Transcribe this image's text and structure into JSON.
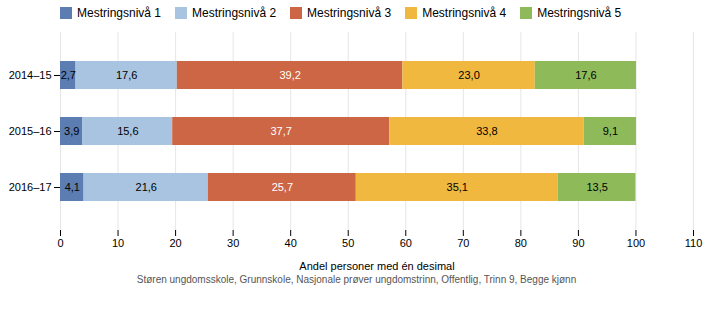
{
  "chart_data": {
    "type": "bar",
    "orientation": "horizontal",
    "stacked": true,
    "data_labels": true,
    "grid": true,
    "legend": "top",
    "categories": [
      "2014–15",
      "2015–16",
      "2016–17"
    ],
    "series": [
      {
        "name": "Mestringsnivå 1",
        "color": "#5b7db1",
        "values": [
          2.7,
          3.9,
          4.1
        ],
        "value_labels": [
          "2,7",
          "3,9",
          "4,1"
        ]
      },
      {
        "name": "Mestringsnivå 2",
        "color": "#a8c4e0",
        "values": [
          17.6,
          15.6,
          21.6
        ],
        "value_labels": [
          "17,6",
          "15,6",
          "21,6"
        ]
      },
      {
        "name": "Mestringsnivå 3",
        "color": "#cc6644",
        "values": [
          39.2,
          37.7,
          25.7
        ],
        "value_labels": [
          "39,2",
          "37,7",
          "25,7"
        ]
      },
      {
        "name": "Mestringsnivå 4",
        "color": "#f0b83f",
        "values": [
          23.0,
          33.8,
          35.1
        ],
        "value_labels": [
          "23,0",
          "33,8",
          "35,1"
        ]
      },
      {
        "name": "Mestringsnivå 5",
        "color": "#8fba5a",
        "values": [
          17.6,
          9.1,
          13.5
        ],
        "value_labels": [
          "17,6",
          "9,1",
          "13,5"
        ]
      }
    ],
    "xlabel": "Andel personer med én desimal",
    "caption": "Støren ungdomsskole, Grunnskole, Nasjonale prøver ungdomstrinn, Offentlig, Trinn 9, Begge kjønn",
    "xlim": [
      0,
      110
    ],
    "xticks": [
      0,
      10,
      20,
      30,
      40,
      50,
      60,
      70,
      80,
      90,
      100,
      110
    ]
  }
}
